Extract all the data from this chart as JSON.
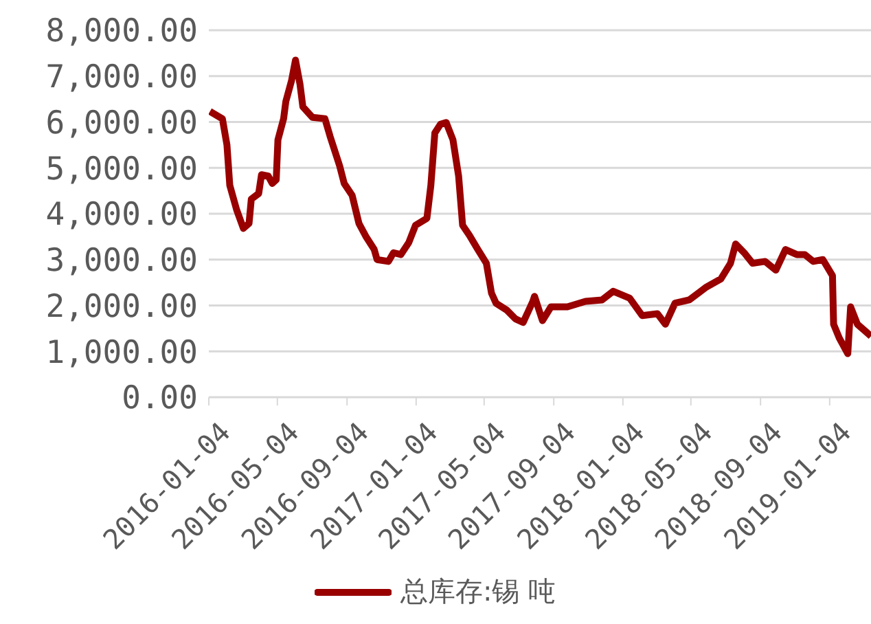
{
  "chart_data": {
    "type": "line",
    "x": [
      "2016-01-06",
      "2016-01-28",
      "2016-02-05",
      "2016-02-10",
      "2016-02-22",
      "2016-03-05",
      "2016-03-15",
      "2016-03-19",
      "2016-04-01",
      "2016-04-06",
      "2016-04-18",
      "2016-04-25",
      "2016-05-02",
      "2016-05-05",
      "2016-05-15",
      "2016-05-19",
      "2016-05-29",
      "2016-06-05",
      "2016-06-13",
      "2016-06-18",
      "2016-07-05",
      "2016-07-27",
      "2016-08-05",
      "2016-08-22",
      "2016-08-30",
      "2016-09-13",
      "2016-09-25",
      "2016-10-08",
      "2016-10-22",
      "2016-10-27",
      "2016-11-16",
      "2016-11-25",
      "2016-12-08",
      "2016-12-22",
      "2017-01-03",
      "2017-01-23",
      "2017-01-30",
      "2017-02-06",
      "2017-02-16",
      "2017-02-26",
      "2017-03-10",
      "2017-03-20",
      "2017-03-27",
      "2017-04-08",
      "2017-04-23",
      "2017-05-08",
      "2017-05-17",
      "2017-05-25",
      "2017-06-13",
      "2017-06-28",
      "2017-07-12",
      "2017-07-29",
      "2017-08-01",
      "2017-08-15",
      "2017-08-30",
      "2017-09-28",
      "2017-10-30",
      "2017-11-28",
      "2017-12-18",
      "2018-01-16",
      "2018-02-07",
      "2018-03-06",
      "2018-03-20",
      "2018-04-06",
      "2018-05-01",
      "2018-05-30",
      "2018-06-26",
      "2018-07-13",
      "2018-07-22",
      "2018-08-06",
      "2018-08-21",
      "2018-09-12",
      "2018-10-01",
      "2018-10-18",
      "2018-11-07",
      "2018-11-21",
      "2018-12-06",
      "2018-12-23",
      "2019-01-09",
      "2019-01-11",
      "2019-01-21",
      "2019-02-05",
      "2019-02-10",
      "2019-02-22",
      "2019-03-08",
      "2019-03-18"
    ],
    "series": [
      {
        "name": "总库存:锡 吨",
        "color": "#990000",
        "values": [
          6230,
          6070,
          5500,
          4620,
          4090,
          3680,
          3790,
          4320,
          4440,
          4850,
          4820,
          4660,
          4740,
          5610,
          6070,
          6450,
          6900,
          7350,
          6820,
          6330,
          6100,
          6070,
          5690,
          5040,
          4660,
          4400,
          3790,
          3490,
          3220,
          3000,
          2960,
          3150,
          3110,
          3370,
          3750,
          3900,
          4620,
          5760,
          5950,
          5990,
          5610,
          4820,
          3750,
          3530,
          3220,
          2920,
          2270,
          2050,
          1900,
          1710,
          1630,
          2090,
          2200,
          1670,
          1970,
          1970,
          2090,
          2120,
          2310,
          2160,
          1780,
          1820,
          1590,
          2050,
          2120,
          2390,
          2580,
          2920,
          3340,
          3150,
          2920,
          2960,
          2770,
          3220,
          3110,
          3110,
          2960,
          3000,
          2650,
          1590,
          1290,
          950,
          1970,
          1590,
          1440,
          1330
        ]
      }
    ],
    "xlim": [
      "2016-01-04",
      "2019-03-18"
    ],
    "xticks": [
      "2016-01-04",
      "2016-05-04",
      "2016-09-04",
      "2017-01-04",
      "2017-05-04",
      "2017-09-04",
      "2018-01-04",
      "2018-05-04",
      "2018-09-04",
      "2019-01-04"
    ],
    "ylim": [
      0,
      8000
    ],
    "yticks": [
      {
        "value": 0,
        "label": "0.00"
      },
      {
        "value": 1000,
        "label": "1,000.00"
      },
      {
        "value": 2000,
        "label": "2,000.00"
      },
      {
        "value": 3000,
        "label": "3,000.00"
      },
      {
        "value": 4000,
        "label": "4,000.00"
      },
      {
        "value": 5000,
        "label": "5,000.00"
      },
      {
        "value": 6000,
        "label": "6,000.00"
      },
      {
        "value": 7000,
        "label": "7,000.00"
      },
      {
        "value": 8000,
        "label": "8,000.00"
      }
    ],
    "grid": "y",
    "legend": "bottom",
    "marker": "none",
    "line_style": "solid"
  }
}
